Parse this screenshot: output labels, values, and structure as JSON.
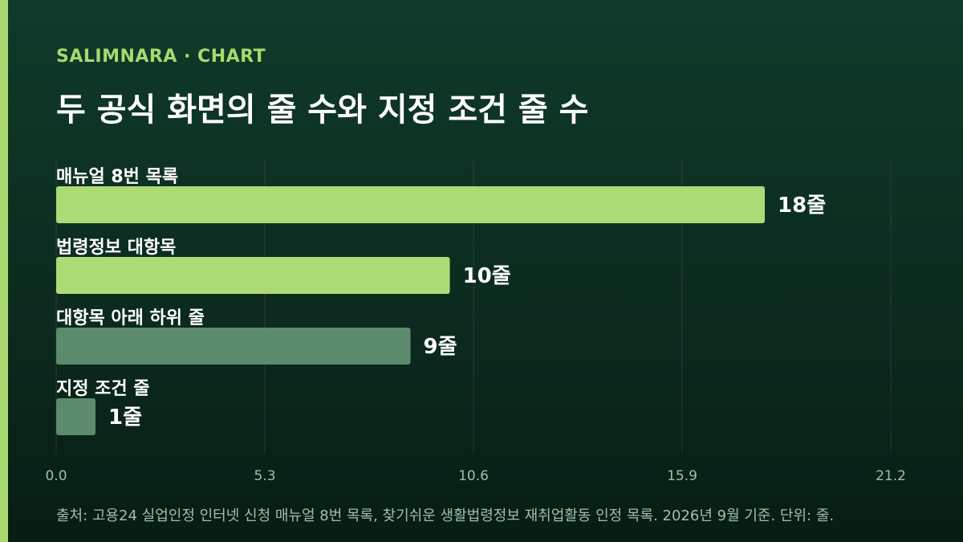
{
  "header": {
    "brand": "SALIMNARA · CHART",
    "title": "두 공식 화면의 줄 수와 지정 조건 줄 수"
  },
  "footer": {
    "source": "출처: 고용24 실업인정 인터넷 신청 매뉴얼 8번 목록, 찾기쉬운 생활법령정보 재취업활동 인정 목록. 2026년 9월 기준. 단위: 줄."
  },
  "colors": {
    "background": "#0d3324",
    "accent": "#a9d86e",
    "bar_highlight": "#acdb76",
    "bar_muted": "#5b8a6c",
    "text": "#ffffff",
    "muted_text": "#9fbfae"
  },
  "chart_data": {
    "type": "bar",
    "orientation": "horizontal",
    "title": "두 공식 화면의 줄 수와 지정 조건 줄 수",
    "categories": [
      "매뉴얼 8번 목록",
      "법령정보 대항목",
      "대항목 아래 하위 줄",
      "지정 조건 줄"
    ],
    "values": [
      18,
      10,
      9,
      1
    ],
    "value_labels": [
      "18줄",
      "10줄",
      "9줄",
      "1줄"
    ],
    "bar_colors": [
      "#acdb76",
      "#acdb76",
      "#5b8a6c",
      "#5b8a6c"
    ],
    "xlim": [
      0,
      21.2
    ],
    "x_ticks": [
      "0.0",
      "5.3",
      "10.6",
      "15.9",
      "21.2"
    ],
    "grid": true,
    "unit": "줄"
  }
}
